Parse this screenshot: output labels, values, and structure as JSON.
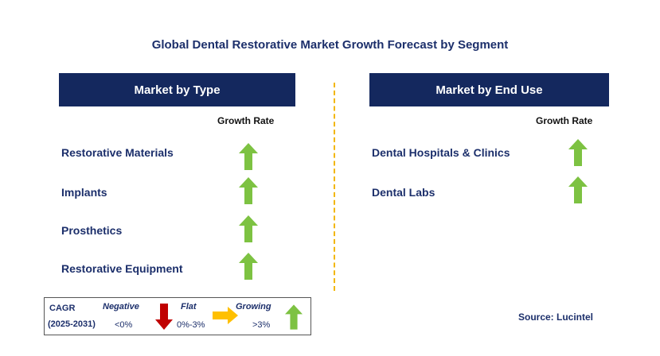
{
  "title": "Global Dental Restorative Market Growth Forecast by Segment",
  "left_panel": {
    "header": "Market by Type",
    "growth_rate_label": "Growth Rate",
    "items": [
      {
        "label": "Restorative Materials",
        "growth": "growing"
      },
      {
        "label": "Implants",
        "growth": "growing"
      },
      {
        "label": "Prosthetics",
        "growth": "growing"
      },
      {
        "label": "Restorative Equipment",
        "growth": "growing"
      }
    ]
  },
  "right_panel": {
    "header": "Market by End Use",
    "growth_rate_label": "Growth Rate",
    "items": [
      {
        "label": "Dental Hospitals & Clinics",
        "growth": "growing"
      },
      {
        "label": "Dental Labs",
        "growth": "growing"
      }
    ]
  },
  "legend": {
    "cagr_label": "CAGR",
    "period": "(2025-2031)",
    "negative_label": "Negative",
    "negative_range": "<0%",
    "flat_label": "Flat",
    "flat_range": "0%-3%",
    "growing_label": "Growing",
    "growing_range": ">3%"
  },
  "source": "Source: Lucintel",
  "colors": {
    "header_bg": "#14285e",
    "text_navy": "#1c2f6b",
    "growing": "#7dc242",
    "negative": "#c00000",
    "flat": "#ffc000",
    "divider": "#f2b600"
  },
  "icons": {
    "growing": "up-arrow-icon",
    "negative": "down-arrow-icon",
    "flat": "right-arrow-icon"
  }
}
